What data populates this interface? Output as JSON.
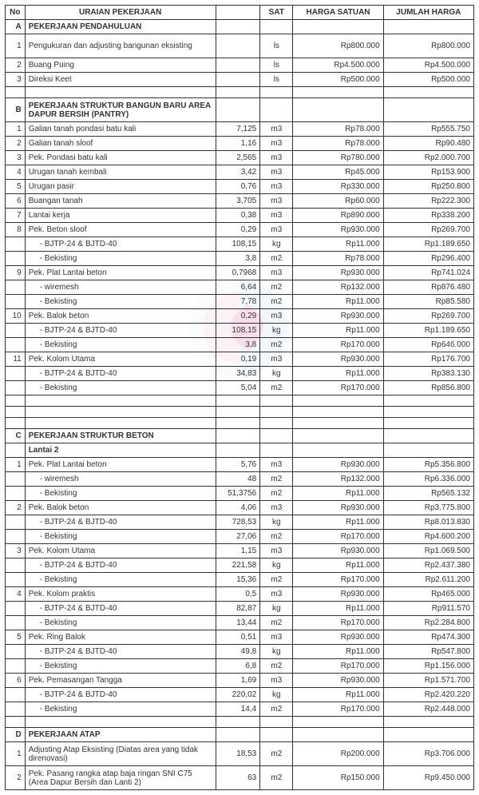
{
  "columns": {
    "no": "No",
    "desc": "URAIAN PEKERJAAN",
    "qty": "",
    "sat": "SAT",
    "hs": "HARGA SATUAN",
    "jh": "JUMLAH HARGA"
  },
  "colors": {
    "border": "#333333",
    "text": "#333333",
    "background": "#ffffff"
  },
  "rows": [
    {
      "type": "section",
      "letter": "A",
      "title": "PEKERJAAN PENDAHULUAN"
    },
    {
      "type": "item",
      "no": "1",
      "desc": "Pengukuran dan adjusting bangunan eksisting",
      "qty": "",
      "sat": "ls",
      "hs": "Rp800.000",
      "jh": "Rp800.000",
      "tall": true
    },
    {
      "type": "item",
      "no": "2",
      "desc": "Buang Puing",
      "qty": "",
      "sat": "ls",
      "hs": "Rp4.500.000",
      "jh": "Rp4.500.000"
    },
    {
      "type": "item",
      "no": "3",
      "desc": "Direksi Keet",
      "qty": "",
      "sat": "ls",
      "hs": "Rp500.000",
      "jh": "Rp500.000"
    },
    {
      "type": "empty"
    },
    {
      "type": "section",
      "letter": "B",
      "title": "PEKERJAAN STRUKTUR  BANGUN BARU AREA DAPUR BERSIH (PANTRY)",
      "tall": true
    },
    {
      "type": "item",
      "no": "1",
      "desc": "Galian tanah pondasi batu kali",
      "qty": "7,125",
      "sat": "m3",
      "hs": "Rp78.000",
      "jh": "Rp555.750"
    },
    {
      "type": "item",
      "no": "2",
      "desc": "Galian tanah sloof",
      "qty": "1,16",
      "sat": "m3",
      "hs": "Rp78.000",
      "jh": "Rp90.480"
    },
    {
      "type": "item",
      "no": "3",
      "desc": "Pek. Pondasi batu kali",
      "qty": "2,565",
      "sat": "m3",
      "hs": "Rp780.000",
      "jh": "Rp2.000.700"
    },
    {
      "type": "item",
      "no": "4",
      "desc": "Urugan tanah kembali",
      "qty": "3,42",
      "sat": "m3",
      "hs": "Rp45.000",
      "jh": "Rp153.900"
    },
    {
      "type": "item",
      "no": "5",
      "desc": "Urugan pasir",
      "qty": "0,76",
      "sat": "m3",
      "hs": "Rp330.000",
      "jh": "Rp250.800"
    },
    {
      "type": "item",
      "no": "6",
      "desc": "Buangan tanah",
      "qty": "3,705",
      "sat": "m3",
      "hs": "Rp60.000",
      "jh": "Rp222.300"
    },
    {
      "type": "item",
      "no": "7",
      "desc": "Lantai kerja",
      "qty": "0,38",
      "sat": "m3",
      "hs": "Rp890.000",
      "jh": "Rp338.200"
    },
    {
      "type": "item",
      "no": "8",
      "desc": "Pek. Beton sloof",
      "qty": "0,29",
      "sat": "m3",
      "hs": "Rp930.000",
      "jh": "Rp269.700"
    },
    {
      "type": "item",
      "no": "",
      "desc": "- BJTP-24 & BJTD-40",
      "sub": true,
      "qty": "108,15",
      "sat": "kg",
      "hs": "Rp11.000",
      "jh": "Rp1.189.650"
    },
    {
      "type": "item",
      "no": "",
      "desc": "- Bekisting",
      "sub": true,
      "qty": "3,8",
      "sat": "m2",
      "hs": "Rp78.000",
      "jh": "Rp296.400"
    },
    {
      "type": "item",
      "no": "9",
      "desc": "Pek. Plat Lantai beton",
      "qty": "0,7968",
      "sat": "m3",
      "hs": "Rp930.000",
      "jh": "Rp741.024"
    },
    {
      "type": "item",
      "no": "",
      "desc": "- wiremesh",
      "sub": true,
      "qty": "6,64",
      "sat": "m2",
      "hs": "Rp132.000",
      "jh": "Rp876.480"
    },
    {
      "type": "item",
      "no": "",
      "desc": "- Bekisting",
      "sub": true,
      "qty": "7,78",
      "sat": "m2",
      "hs": "Rp11.000",
      "jh": "Rp85.580"
    },
    {
      "type": "item",
      "no": "10",
      "desc": "Pek. Balok beton",
      "qty": "0,29",
      "sat": "m3",
      "hs": "Rp930.000",
      "jh": "Rp269.700"
    },
    {
      "type": "item",
      "no": "",
      "desc": "- BJTP-24 & BJTD-40",
      "sub": true,
      "qty": "108,15",
      "sat": "kg",
      "hs": "Rp11.000",
      "jh": "Rp1.189.650"
    },
    {
      "type": "item",
      "no": "",
      "desc": "- Bekisting",
      "sub": true,
      "qty": "3,8",
      "sat": "m2",
      "hs": "Rp170.000",
      "jh": "Rp646.000"
    },
    {
      "type": "item",
      "no": "11",
      "desc": "Pek. Kolom Utama",
      "qty": "0,19",
      "sat": "m3",
      "hs": "Rp930.000",
      "jh": "Rp176.700"
    },
    {
      "type": "item",
      "no": "",
      "desc": "- BJTP-24 & BJTD-40",
      "sub": true,
      "qty": "34,83",
      "sat": "kg",
      "hs": "Rp11.000",
      "jh": "Rp383.130"
    },
    {
      "type": "item",
      "no": "",
      "desc": "- Bekisting",
      "sub": true,
      "qty": "5,04",
      "sat": "m2",
      "hs": "Rp170.000",
      "jh": "Rp856.800"
    },
    {
      "type": "empty"
    },
    {
      "type": "empty"
    },
    {
      "type": "empty"
    },
    {
      "type": "section",
      "letter": "C",
      "title": "PEKERJAAN STRUKTUR BETON"
    },
    {
      "type": "lantai",
      "title": "Lantai 2"
    },
    {
      "type": "item",
      "no": "1",
      "desc": "Pek. Plat Lantai beton",
      "qty": "5,76",
      "sat": "m3",
      "hs": "Rp930.000",
      "jh": "Rp5.356.800"
    },
    {
      "type": "item",
      "no": "",
      "desc": "- wiremesh",
      "sub": true,
      "qty": "48",
      "sat": "m2",
      "hs": "Rp132.000",
      "jh": "Rp6.336.000"
    },
    {
      "type": "item",
      "no": "",
      "desc": "- Bekisting",
      "sub": true,
      "qty": "51,3756",
      "sat": "m2",
      "hs": "Rp11.000",
      "jh": "Rp565.132"
    },
    {
      "type": "item",
      "no": "2",
      "desc": "Pek. Balok beton",
      "qty": "4,06",
      "sat": "m3",
      "hs": "Rp930.000",
      "jh": "Rp3.775.800"
    },
    {
      "type": "item",
      "no": "",
      "desc": "- BJTP-24 & BJTD-40",
      "sub": true,
      "qty": "728,53",
      "sat": "kg",
      "hs": "Rp11.000",
      "jh": "Rp8.013.830"
    },
    {
      "type": "item",
      "no": "",
      "desc": "- Bekisting",
      "sub": true,
      "qty": "27,06",
      "sat": "m2",
      "hs": "Rp170.000",
      "jh": "Rp4.600.200"
    },
    {
      "type": "item",
      "no": "3",
      "desc": "Pek. Kolom Utama",
      "qty": "1,15",
      "sat": "m3",
      "hs": "Rp930.000",
      "jh": "Rp1.069.500"
    },
    {
      "type": "item",
      "no": "",
      "desc": "- BJTP-24 & BJTD-40",
      "sub": true,
      "qty": "221,58",
      "sat": "kg",
      "hs": "Rp11.000",
      "jh": "Rp2.437.380"
    },
    {
      "type": "item",
      "no": "",
      "desc": "- Bekisting",
      "sub": true,
      "qty": "15,36",
      "sat": "m2",
      "hs": "Rp170.000",
      "jh": "Rp2.611.200"
    },
    {
      "type": "item",
      "no": "4",
      "desc": "Pek. Kolom praktis",
      "qty": "0,5",
      "sat": "m3",
      "hs": "Rp930.000",
      "jh": "Rp465.000"
    },
    {
      "type": "item",
      "no": "",
      "desc": "- BJTP-24 & BJTD-40",
      "sub": true,
      "qty": "82,87",
      "sat": "kg",
      "hs": "Rp11.000",
      "jh": "Rp911.570"
    },
    {
      "type": "item",
      "no": "",
      "desc": "- Bekisting",
      "sub": true,
      "qty": "13,44",
      "sat": "m2",
      "hs": "Rp170.000",
      "jh": "Rp2.284.800"
    },
    {
      "type": "item",
      "no": "5",
      "desc": "Pek. Ring Balok",
      "qty": "0,51",
      "sat": "m3",
      "hs": "Rp930.000",
      "jh": "Rp474.300"
    },
    {
      "type": "item",
      "no": "",
      "desc": "- BJTP-24 & BJTD-40",
      "sub": true,
      "qty": "49,8",
      "sat": "kg",
      "hs": "Rp11.000",
      "jh": "Rp547.800"
    },
    {
      "type": "item",
      "no": "",
      "desc": "- Bekisting",
      "sub": true,
      "qty": "6,8",
      "sat": "m2",
      "hs": "Rp170.000",
      "jh": "Rp1.156.000"
    },
    {
      "type": "item",
      "no": "6",
      "desc": "Pek. Pemasangan Tangga",
      "qty": "1,69",
      "sat": "m3",
      "hs": "Rp930.000",
      "jh": "Rp1.571.700"
    },
    {
      "type": "item",
      "no": "",
      "desc": "- BJTP-24 & BJTD-40",
      "sub": true,
      "qty": "220,02",
      "sat": "kg",
      "hs": "Rp11.000",
      "jh": "Rp2.420.220"
    },
    {
      "type": "item",
      "no": "",
      "desc": "- Bekisting",
      "sub": true,
      "qty": "14,4",
      "sat": "m2",
      "hs": "Rp170.000",
      "jh": "Rp2.448.000"
    },
    {
      "type": "empty"
    },
    {
      "type": "section",
      "letter": "D",
      "title": "PEKERJAAN ATAP"
    },
    {
      "type": "item",
      "no": "1",
      "desc": "Adjusting Atap Eksisting (Diatas area yang tidak direnovasi)",
      "qty": "18,53",
      "sat": "m2",
      "hs": "Rp200.000",
      "jh": "Rp3.706.000",
      "tall": true
    },
    {
      "type": "item",
      "no": "2",
      "desc": "Pek. Pasang rangka atap baja ringan SNI C75 (Area Dapur Bersih dan Lanti 2)",
      "qty": "63",
      "sat": "m2",
      "hs": "Rp150.000",
      "jh": "Rp9.450.000",
      "tall": true
    }
  ]
}
